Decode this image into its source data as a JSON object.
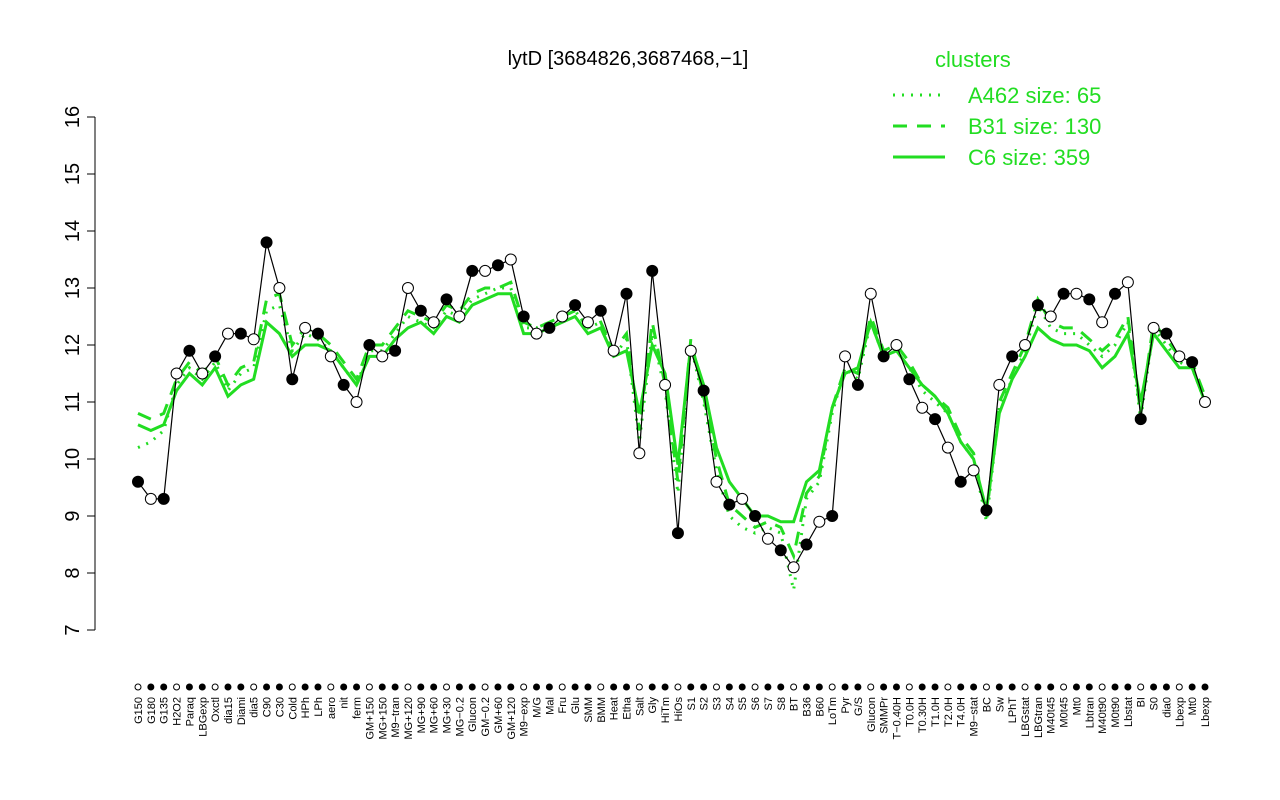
{
  "chart_data": {
    "type": "line",
    "title": "lytD [3684826,3687468,−1]",
    "legend_title": "clusters",
    "legend_color": "#22dd22",
    "categories": [
      "G150",
      "G180",
      "G135",
      "H2O2",
      "Paraq",
      "LBGexp",
      "Oxctl",
      "dia15",
      "Diami",
      "dia5",
      "C90",
      "C30",
      "Cold",
      "HPh",
      "LPh",
      "aero",
      "nit",
      "ferm",
      "GM+150",
      "MG+150",
      "M9−tran",
      "MG+120",
      "MG+90",
      "MG+60",
      "MG+30",
      "MG−0.2",
      "Glucon",
      "GM−0.2",
      "GM+60",
      "GM+120",
      "M9−exp",
      "M/G",
      "Mal",
      "Fru",
      "Glu",
      "SMM",
      "BMM",
      "Heat",
      "Etha",
      "Salt",
      "Gly",
      "HiTm",
      "HiOs",
      "S1",
      "S2",
      "S3",
      "S4",
      "S5",
      "S6",
      "S7",
      "S8",
      "BT",
      "B36",
      "B60",
      "LoTm",
      "Pyr",
      "G/S",
      "Glucon",
      "SMMPr",
      "T−0.40H",
      "T0.0H",
      "T0.30H",
      "T1.0H",
      "T2.0H",
      "T4.0H",
      "M9−stat",
      "BC",
      "Sw",
      "LPhT",
      "LBGstat",
      "LBGtran",
      "M40t45",
      "M0t45",
      "Mt0",
      "Lbtran",
      "M40t90",
      "M0t90",
      "Lbstat",
      "BI",
      "S0",
      "dia0",
      "Lbexp",
      "Mt0",
      "Lbexp"
    ],
    "values": [
      9.6,
      9.3,
      9.3,
      11.5,
      11.9,
      11.5,
      11.8,
      12.2,
      12.2,
      12.1,
      13.8,
      13.0,
      11.4,
      12.3,
      12.2,
      11.8,
      11.3,
      11.0,
      12.0,
      11.8,
      11.9,
      13.0,
      12.6,
      12.4,
      12.8,
      12.5,
      13.3,
      13.3,
      13.4,
      13.5,
      12.5,
      12.2,
      12.3,
      12.5,
      12.7,
      12.4,
      12.6,
      11.9,
      12.9,
      10.1,
      13.3,
      11.3,
      8.7,
      11.9,
      11.2,
      9.6,
      9.2,
      9.3,
      9.0,
      8.6,
      8.4,
      8.1,
      8.5,
      8.9,
      9.0,
      11.8,
      11.3,
      12.9,
      11.8,
      12.0,
      11.4,
      10.9,
      10.7,
      10.2,
      9.6,
      9.8,
      9.1,
      11.3,
      11.8,
      12.0,
      12.7,
      12.5,
      12.9,
      12.9,
      12.8,
      12.4,
      12.9,
      13.1,
      10.7,
      12.3,
      12.2,
      11.8,
      11.7,
      11.0
    ],
    "color": "#000000",
    "series": [
      {
        "name": "A462 size: 65",
        "color": "#22dd22",
        "dash": "dotted",
        "values": [
          10.2,
          10.3,
          10.5,
          11.3,
          11.6,
          11.4,
          11.7,
          11.2,
          11.5,
          11.6,
          12.6,
          12.7,
          11.9,
          12.2,
          12.1,
          11.9,
          11.6,
          11.3,
          11.9,
          11.9,
          12.2,
          12.5,
          12.4,
          12.3,
          12.6,
          12.5,
          12.8,
          12.9,
          13.0,
          13.0,
          12.3,
          12.3,
          12.4,
          12.5,
          12.6,
          12.3,
          12.4,
          11.8,
          12.1,
          10.3,
          12.2,
          11.2,
          9.4,
          12.0,
          11.0,
          9.8,
          9.0,
          8.8,
          8.7,
          8.8,
          8.7,
          7.7,
          9.3,
          9.6,
          10.8,
          11.6,
          11.4,
          12.4,
          11.8,
          11.9,
          11.6,
          11.2,
          11.0,
          10.8,
          10.3,
          10.0,
          8.9,
          10.9,
          11.4,
          11.9,
          12.7,
          12.3,
          12.2,
          12.2,
          12.0,
          11.8,
          12.0,
          12.4,
          10.7,
          12.3,
          12.0,
          11.7,
          11.6,
          11.0
        ]
      },
      {
        "name": "B31 size: 130",
        "color": "#22dd22",
        "dash": "dashed",
        "values": [
          10.8,
          10.7,
          10.8,
          11.4,
          11.7,
          11.5,
          11.8,
          11.3,
          11.6,
          11.7,
          12.8,
          12.9,
          12.0,
          12.3,
          12.2,
          12.0,
          11.7,
          11.4,
          12.0,
          12.0,
          12.3,
          12.6,
          12.5,
          12.4,
          12.7,
          12.6,
          12.9,
          13.0,
          13.0,
          13.1,
          12.4,
          12.3,
          12.4,
          12.5,
          12.6,
          12.3,
          12.4,
          11.9,
          12.2,
          10.5,
          12.4,
          11.3,
          9.6,
          12.1,
          11.1,
          10.0,
          9.2,
          9.0,
          8.8,
          8.9,
          8.8,
          8.3,
          9.4,
          9.7,
          10.9,
          11.6,
          11.5,
          12.5,
          11.9,
          12.0,
          11.7,
          11.3,
          11.1,
          10.9,
          10.4,
          10.1,
          9.0,
          11.0,
          11.5,
          12.0,
          12.8,
          12.4,
          12.3,
          12.3,
          12.1,
          11.9,
          12.1,
          12.5,
          10.8,
          12.4,
          12.1,
          11.8,
          11.7,
          11.1
        ]
      },
      {
        "name": "C6 size: 359",
        "color": "#22dd22",
        "dash": "solid",
        "values": [
          10.6,
          10.5,
          10.6,
          11.2,
          11.5,
          11.3,
          11.6,
          11.1,
          11.3,
          11.4,
          12.4,
          12.2,
          11.8,
          12.0,
          12.0,
          11.9,
          11.6,
          11.3,
          11.8,
          11.8,
          12.1,
          12.3,
          12.4,
          12.2,
          12.5,
          12.4,
          12.7,
          12.8,
          12.9,
          12.9,
          12.2,
          12.2,
          12.3,
          12.4,
          12.5,
          12.2,
          12.3,
          11.8,
          11.9,
          10.8,
          12.0,
          11.5,
          9.9,
          12.0,
          11.3,
          10.2,
          9.6,
          9.3,
          9.0,
          9.0,
          8.9,
          8.9,
          9.6,
          9.8,
          10.9,
          11.5,
          11.6,
          12.4,
          11.8,
          11.9,
          11.6,
          11.3,
          11.1,
          10.8,
          10.3,
          10.0,
          9.1,
          10.8,
          11.4,
          11.8,
          12.3,
          12.1,
          12.0,
          12.0,
          11.9,
          11.6,
          11.8,
          12.2,
          11.0,
          12.2,
          11.9,
          11.6,
          11.6,
          11.0
        ]
      }
    ],
    "ylim": [
      7,
      16
    ],
    "yticks": [
      7,
      8,
      9,
      10,
      11,
      12,
      13,
      14,
      15,
      16
    ]
  }
}
